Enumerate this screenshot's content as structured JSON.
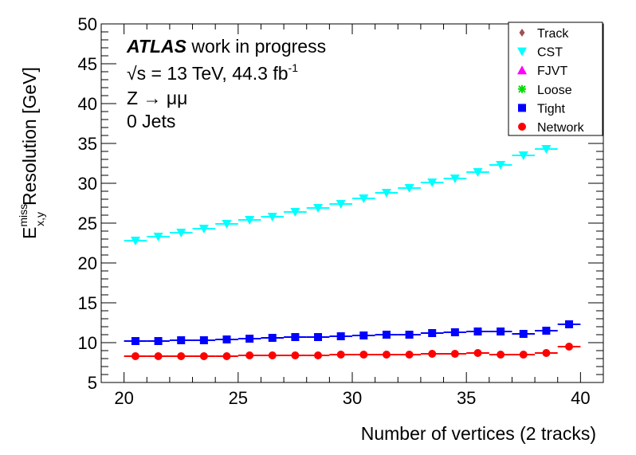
{
  "chart_data": {
    "type": "scatter",
    "xlabel": "Number of vertices (2 tracks)",
    "ylabel": "Resolution [GeV]",
    "ylabel_symbol": "E",
    "ylabel_superscript": "miss",
    "ylabel_subscript": "x,y",
    "xlim": [
      19,
      41
    ],
    "ylim": [
      5,
      50
    ],
    "x_ticks": [
      20,
      25,
      30,
      35,
      40
    ],
    "y_ticks": [
      5,
      10,
      15,
      20,
      25,
      30,
      35,
      40,
      45,
      50
    ],
    "annotations": {
      "atlas": "ATLAS",
      "atlas_suffix": "work in progress",
      "energy": "√s = 13 TeV, 44.3 fb",
      "energy_sup": "-1",
      "process": "Z → μμ",
      "jets": "0 Jets"
    },
    "legend_position": "top-right",
    "x": [
      20.5,
      21.5,
      22.5,
      23.5,
      24.5,
      25.5,
      26.5,
      27.5,
      28.5,
      29.5,
      30.5,
      31.5,
      32.5,
      33.5,
      34.5,
      35.5,
      36.5,
      37.5,
      38.5,
      39.5
    ],
    "series": [
      {
        "name": "Track",
        "marker": "diamond",
        "color": "#a05050",
        "values": []
      },
      {
        "name": "CST",
        "marker": "triangle-down",
        "color": "#00ffff",
        "values": [
          22.8,
          23.3,
          23.8,
          24.3,
          24.9,
          25.4,
          25.8,
          26.4,
          26.9,
          27.4,
          28.1,
          28.8,
          29.4,
          30.1,
          30.6,
          31.4,
          32.3,
          33.5,
          34.3,
          null
        ]
      },
      {
        "name": "FJVT",
        "marker": "triangle-up",
        "color": "#ff00ff",
        "values": []
      },
      {
        "name": "Loose",
        "marker": "star",
        "color": "#00dd00",
        "values": []
      },
      {
        "name": "Tight",
        "marker": "square",
        "color": "#0000ff",
        "values": [
          10.2,
          10.2,
          10.3,
          10.3,
          10.4,
          10.5,
          10.6,
          10.7,
          10.7,
          10.8,
          10.9,
          11.0,
          11.0,
          11.2,
          11.3,
          11.4,
          11.4,
          11.1,
          11.5,
          12.3
        ]
      },
      {
        "name": "Network",
        "marker": "circle",
        "color": "#ff0000",
        "values": [
          8.3,
          8.3,
          8.3,
          8.3,
          8.3,
          8.4,
          8.4,
          8.4,
          8.4,
          8.5,
          8.5,
          8.5,
          8.5,
          8.6,
          8.6,
          8.7,
          8.5,
          8.5,
          8.7,
          9.5
        ]
      }
    ]
  }
}
